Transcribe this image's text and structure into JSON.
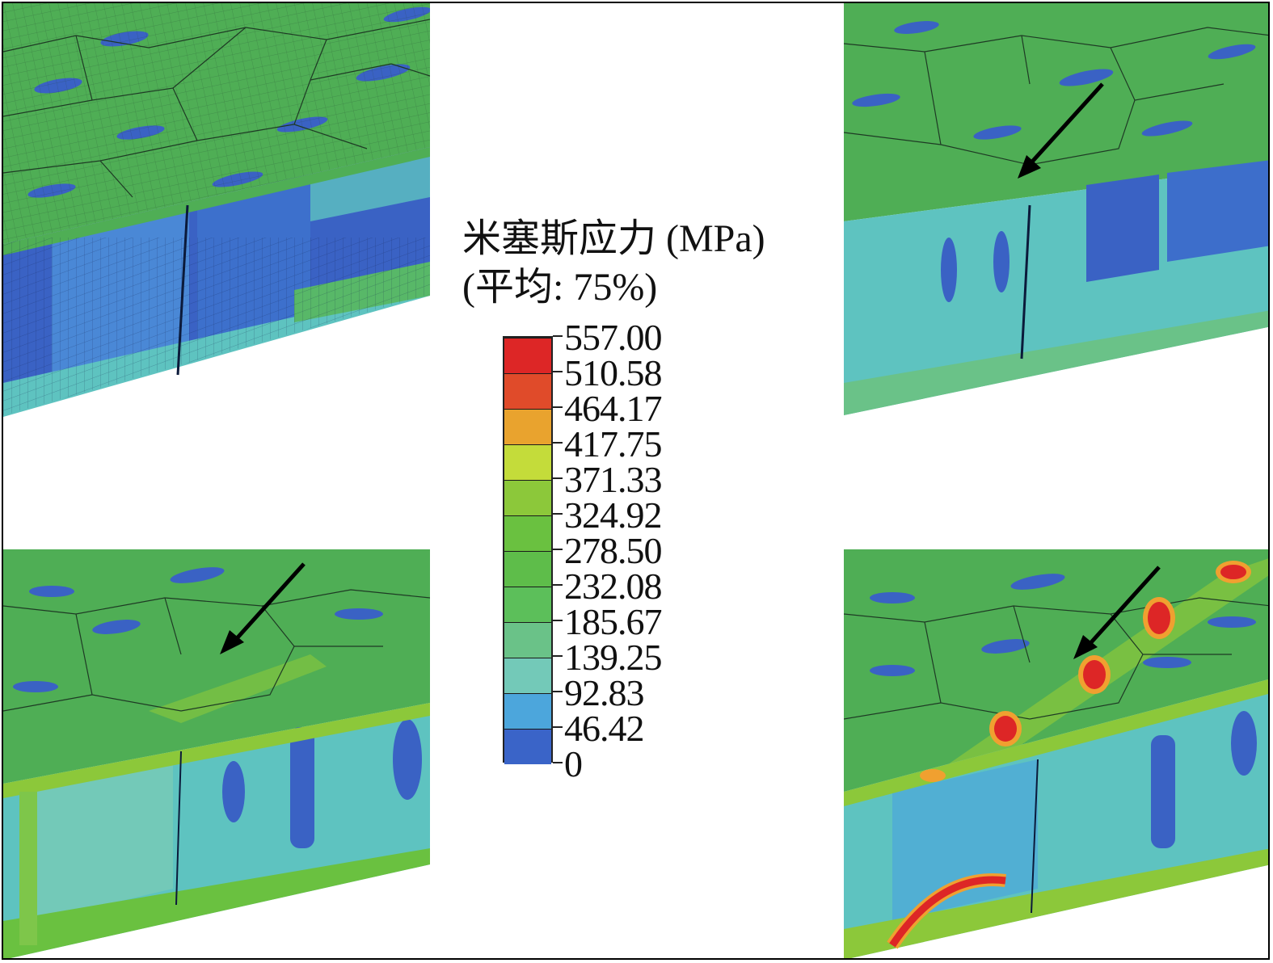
{
  "legend": {
    "title_line1": "米塞斯应力 (MPa)",
    "title_line2": "(平均: 75%)",
    "levels": [
      "557.00",
      "510.58",
      "464.17",
      "417.75",
      "371.33",
      "324.92",
      "278.50",
      "232.08",
      "185.67",
      "139.25",
      "92.83",
      "46.42",
      "0"
    ],
    "colors": [
      "#dd2626",
      "#e04b2a",
      "#e9a32e",
      "#c4dc3a",
      "#8cc83a",
      "#6ac140",
      "#5ebd4a",
      "#5cbf5a",
      "#6ac288",
      "#73c9b8",
      "#4ca6dc",
      "#3a64c8",
      "#2e4aa8"
    ]
  },
  "panels": [
    {
      "id": "top-left",
      "arrow": false,
      "hotspots": false
    },
    {
      "id": "top-right",
      "arrow": true,
      "hotspots": false
    },
    {
      "id": "bottom-left",
      "arrow": true,
      "hotspots": false
    },
    {
      "id": "bottom-right",
      "arrow": true,
      "hotspots": true
    }
  ],
  "colors": {
    "surface_green": "#4fae55",
    "wall_blue": "#3a62c4",
    "deep_blue": "#2c45a8",
    "cyan": "#5ec3c0",
    "hotspot_red": "#dd2626",
    "hotspot_orange": "#f0a030"
  }
}
